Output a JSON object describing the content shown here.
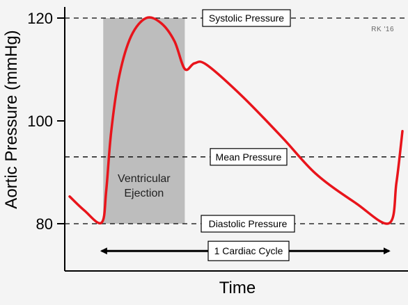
{
  "chart_data": {
    "type": "line",
    "xlabel": "Time",
    "ylabel": "Aortic Pressure (mmHg)",
    "ylim": [
      70,
      120
    ],
    "y_ticks": [
      80,
      100,
      120
    ],
    "grid": false,
    "series": [
      {
        "color": "#e8141b",
        "points": [
          {
            "x": 0.0,
            "y": 85.3
          },
          {
            "x": 0.044,
            "y": 82.6
          },
          {
            "x": 0.096,
            "y": 80.2
          },
          {
            "x": 0.11,
            "y": 86.5
          },
          {
            "x": 0.125,
            "y": 98.0
          },
          {
            "x": 0.15,
            "y": 109.0
          },
          {
            "x": 0.185,
            "y": 116.5
          },
          {
            "x": 0.23,
            "y": 120.0
          },
          {
            "x": 0.275,
            "y": 119.0
          },
          {
            "x": 0.315,
            "y": 115.5
          },
          {
            "x": 0.346,
            "y": 110.1
          },
          {
            "x": 0.375,
            "y": 111.2
          },
          {
            "x": 0.412,
            "y": 110.9
          },
          {
            "x": 0.52,
            "y": 104.7
          },
          {
            "x": 0.64,
            "y": 96.7
          },
          {
            "x": 0.74,
            "y": 89.7
          },
          {
            "x": 0.86,
            "y": 84.0
          },
          {
            "x": 0.96,
            "y": 80.1
          },
          {
            "x": 0.982,
            "y": 88.0
          },
          {
            "x": 1.0,
            "y": 98.0
          }
        ]
      }
    ],
    "reference_lines": [
      {
        "label": "Systolic Pressure",
        "y": 120
      },
      {
        "label": "Mean Pressure",
        "y": 93
      },
      {
        "label": "Diastolic Pressure",
        "y": 80
      }
    ],
    "shaded_region": {
      "label_line1": "Ventricular",
      "label_line2": "Ejection",
      "x_start": 0.101,
      "x_end": 0.346,
      "color": "#bdbdbd"
    },
    "cycle_arrow": {
      "label": "1 Cardiac Cycle",
      "x_start": 0.096,
      "x_end": 0.96,
      "y": 74.7
    },
    "credit": "RK '16"
  }
}
